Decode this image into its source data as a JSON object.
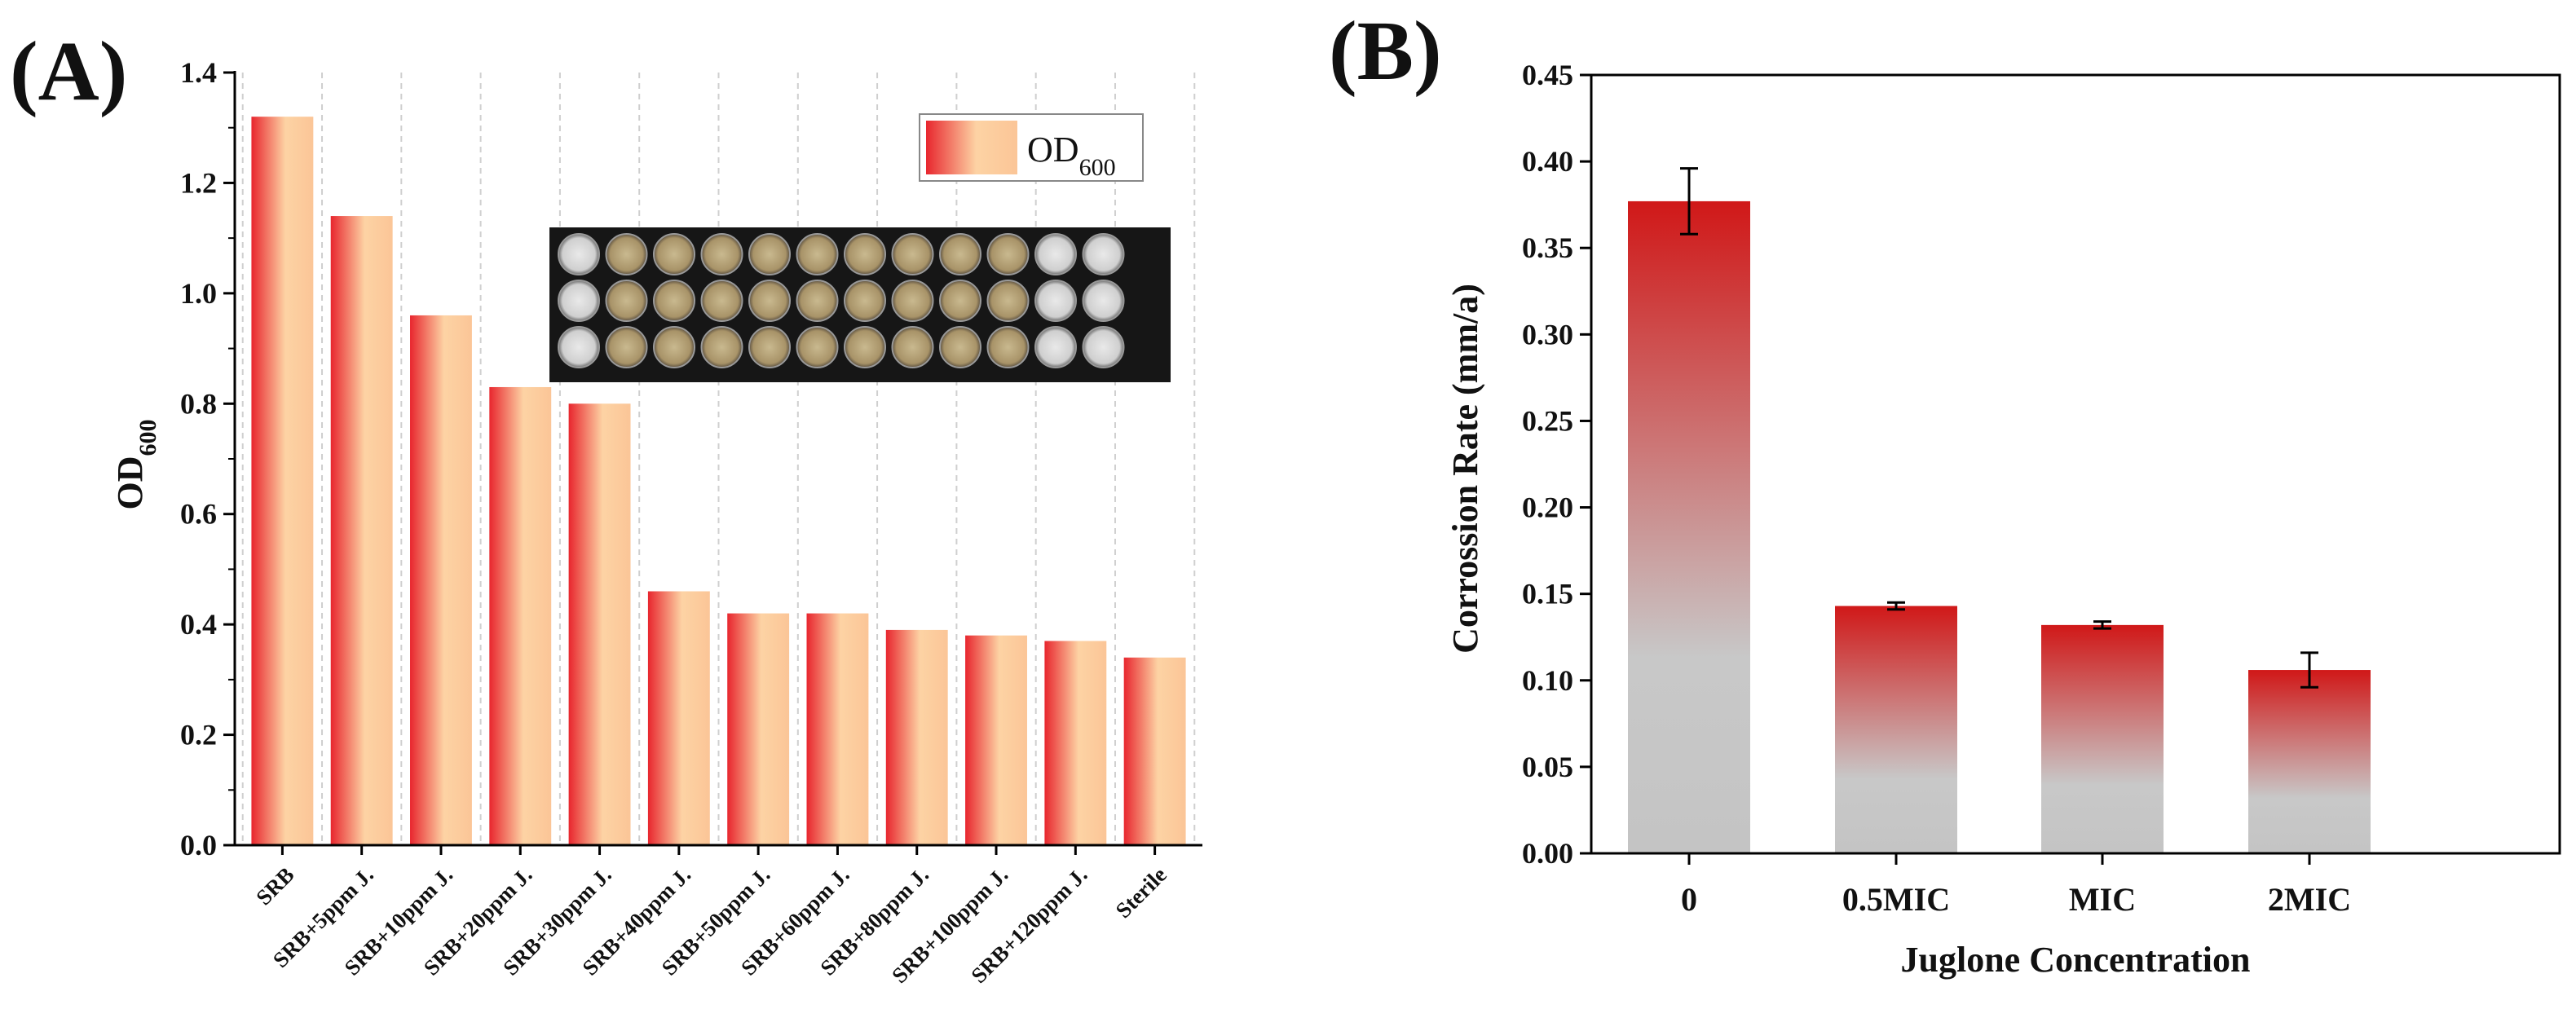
{
  "chart_data": [
    {
      "type": "bar",
      "panel_label": "(A)",
      "categories": [
        "SRB",
        "SRB+5ppm J.",
        "SRB+10ppm J.",
        "SRB+20ppm J.",
        "SRB+30ppm J.",
        "SRB+40ppm J.",
        "SRB+50ppm J.",
        "SRB+60ppm J.",
        "SRB+80ppm J.",
        "SRB+100ppm J.",
        "SRB+120ppm J.",
        "Sterile"
      ],
      "values": [
        1.32,
        1.14,
        0.96,
        0.83,
        0.8,
        0.46,
        0.42,
        0.42,
        0.39,
        0.38,
        0.37,
        0.34
      ],
      "ylabel_main": "OD",
      "ylabel_sub": "600",
      "legend_main": "OD",
      "legend_sub": "600",
      "ylim": [
        0,
        1.4
      ],
      "yticks": [
        "0.0",
        "0.2",
        "0.4",
        "0.6",
        "0.8",
        "1.0",
        "1.2",
        "1.4"
      ],
      "grid": "vertical dashed",
      "legend_position": "top-right",
      "colors": {
        "bar_edge": "#e8262e",
        "bar_center": "#fdd3a4"
      },
      "inset": "well-plate photo"
    },
    {
      "type": "bar",
      "panel_label": "(B)",
      "categories": [
        "0",
        "0.5MIC",
        "MIC",
        "2MIC"
      ],
      "values": [
        0.377,
        0.143,
        0.132,
        0.106
      ],
      "errors": [
        0.019,
        0.002,
        0.002,
        0.01
      ],
      "xlabel": "Juglone Concentration",
      "ylabel": "Corrossion Rate (mm/a)",
      "ylim": [
        0,
        0.45
      ],
      "yticks": [
        "0.00",
        "0.05",
        "0.10",
        "0.15",
        "0.20",
        "0.25",
        "0.30",
        "0.35",
        "0.40",
        "0.45"
      ],
      "grid": false,
      "colors": {
        "bar_top": "#d01818",
        "bar_bottom": "#c8c8c8",
        "error": "#000000"
      }
    }
  ]
}
